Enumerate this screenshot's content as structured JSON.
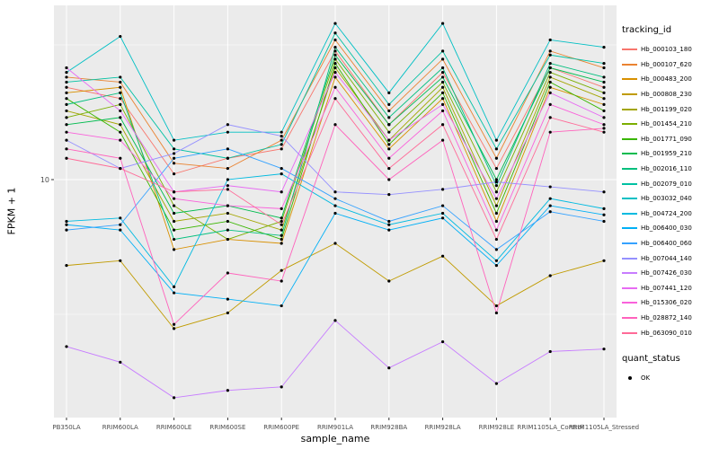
{
  "chart_data": {
    "type": "line",
    "title": "",
    "xlabel": "sample_name",
    "ylabel": "FPKM + 1",
    "y_scale": "log10",
    "y_ticks": [
      10
    ],
    "y_tick_labels": [
      "10"
    ],
    "grid": {
      "major_y": [
        10
      ],
      "minor_y": [
        3.162,
        31.62
      ]
    },
    "categories": [
      "PB350LA",
      "RRIM600LA",
      "RRIM600LE",
      "RRIM600SE",
      "RRIM600PE",
      "RRIM901LA",
      "RRIM928BA",
      "RRIM928LA",
      "RRIM928LE",
      "RRIM1105LA_Control",
      "RRIM1105LA_Stressed"
    ],
    "series": [
      {
        "name": "Hb_000103_180",
        "color": "#F8766D",
        "values": [
          22,
          20,
          10.5,
          12,
          13,
          30,
          16,
          25,
          11,
          26,
          22
        ]
      },
      {
        "name": "Hb_000107_620",
        "color": "#EA8331",
        "values": [
          24,
          23,
          11.5,
          11,
          14,
          33,
          18,
          28,
          12,
          30,
          26
        ]
      },
      {
        "name": "Hb_000483_200",
        "color": "#D89000",
        "values": [
          21,
          22,
          5.5,
          6,
          5.8,
          24,
          13,
          20,
          7,
          22,
          19
        ]
      },
      {
        "name": "Hb_000808_230",
        "color": "#C09B00",
        "values": [
          4.8,
          5.0,
          2.8,
          3.2,
          4.6,
          5.8,
          4.2,
          5.2,
          3.4,
          4.4,
          5.0
        ]
      },
      {
        "name": "Hb_001199_020",
        "color": "#A3A500",
        "values": [
          18,
          16,
          7,
          7.5,
          6.5,
          26,
          14,
          22,
          8,
          24,
          20
        ]
      },
      {
        "name": "Hb_001454_210",
        "color": "#7CAE00",
        "values": [
          17,
          19,
          8,
          6,
          7,
          28,
          15,
          23,
          9,
          25,
          21
        ]
      },
      {
        "name": "Hb_001771_090",
        "color": "#39B600",
        "values": [
          20,
          15,
          6.5,
          7,
          6,
          27,
          13.5,
          21,
          7.5,
          23,
          18
        ]
      },
      {
        "name": "Hb_001959_210",
        "color": "#00BB4E",
        "values": [
          16,
          17,
          7.5,
          8,
          7.2,
          29,
          16,
          24,
          10,
          26,
          23
        ]
      },
      {
        "name": "Hb_002016_110",
        "color": "#00BF7D",
        "values": [
          19,
          21,
          6,
          6.5,
          6.2,
          31,
          17,
          26,
          9.5,
          27,
          24
        ]
      },
      {
        "name": "Hb_002079_010",
        "color": "#00C1A3",
        "values": [
          23,
          24,
          13,
          12,
          13.5,
          35,
          19,
          30,
          13,
          29,
          27
        ]
      },
      {
        "name": "Hb_003032_040",
        "color": "#00BFC4",
        "values": [
          25,
          34,
          14,
          15,
          15,
          38,
          21,
          38,
          14,
          33,
          31
        ]
      },
      {
        "name": "Hb_004724_200",
        "color": "#00BAE0",
        "values": [
          7,
          7.2,
          4,
          10,
          10.5,
          8,
          6.8,
          7.5,
          5,
          8.5,
          7.8
        ]
      },
      {
        "name": "Hb_006400_030",
        "color": "#00B0F6",
        "values": [
          6.8,
          6.5,
          3.8,
          3.6,
          3.4,
          7.5,
          6.5,
          7.2,
          4.8,
          8,
          7.4
        ]
      },
      {
        "name": "Hb_006400_060",
        "color": "#35A2FF",
        "values": [
          6.5,
          6.8,
          12,
          13,
          11,
          8.5,
          7,
          8,
          5.5,
          7.6,
          7.0
        ]
      },
      {
        "name": "Hb_007044_140",
        "color": "#9590FF",
        "values": [
          14,
          11,
          12.5,
          16,
          14.5,
          9,
          8.8,
          9.2,
          9.8,
          9.4,
          9.0
        ]
      },
      {
        "name": "Hb_007426_030",
        "color": "#C77CFF",
        "values": [
          2.4,
          2.1,
          1.55,
          1.65,
          1.7,
          3.0,
          2.0,
          2.5,
          1.75,
          2.3,
          2.35
        ]
      },
      {
        "name": "Hb_007441_120",
        "color": "#E76BF3",
        "values": [
          26,
          18,
          9,
          9.5,
          9,
          25,
          14,
          19,
          8.5,
          21,
          17
        ]
      },
      {
        "name": "Hb_015306_020",
        "color": "#FA62DB",
        "values": [
          15,
          14,
          8.5,
          8,
          7.8,
          22,
          12,
          18,
          6.5,
          19,
          16
        ]
      },
      {
        "name": "Hb_028872_140",
        "color": "#FF62BC",
        "values": [
          13,
          12,
          2.9,
          4.5,
          4.2,
          16,
          10,
          14,
          3.2,
          15,
          15.5
        ]
      },
      {
        "name": "Hb_063090_010",
        "color": "#FF6A98",
        "values": [
          12,
          11,
          9,
          9.2,
          6.8,
          20,
          11,
          16,
          6,
          17,
          15
        ]
      }
    ],
    "legend": {
      "title": "tracking_id",
      "position": "right"
    },
    "quant_legend": {
      "title": "quant_status",
      "items": [
        {
          "label": "OK"
        }
      ]
    },
    "colors": {
      "panel": "#EBEBEB",
      "gridline": "#FFFFFF",
      "point": "#000000",
      "axis_text": "#4D4D4D"
    }
  }
}
